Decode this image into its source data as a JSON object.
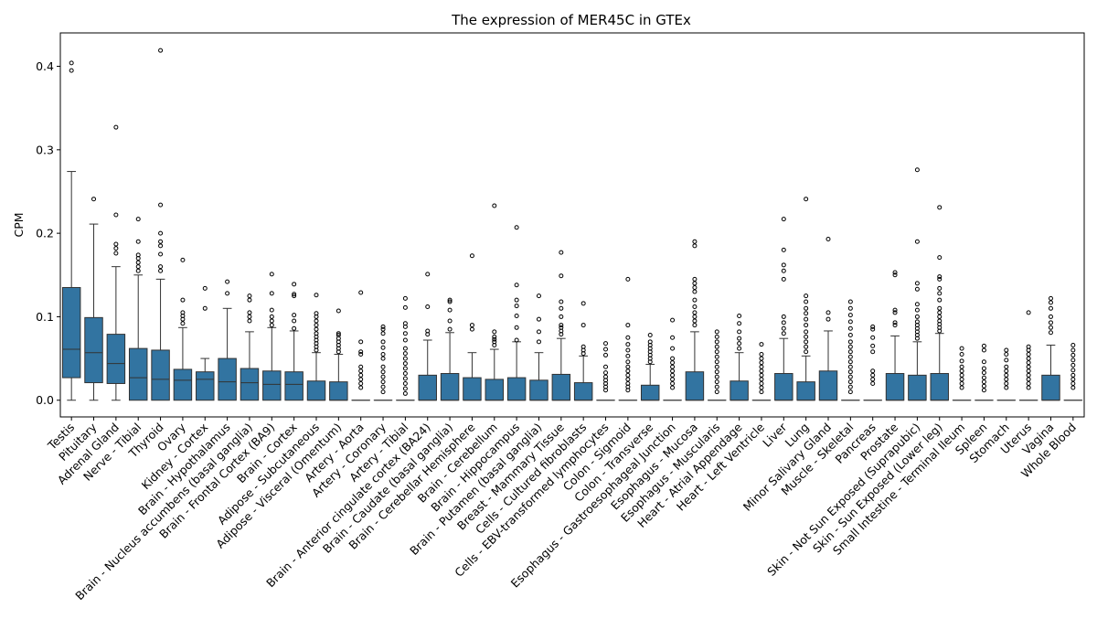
{
  "chart_data": {
    "type": "box",
    "title": "The expression of MER45C in GTEx",
    "xlabel": "",
    "ylabel": "CPM",
    "ylim": [
      -0.02,
      0.44
    ],
    "yticks": [
      "0.0",
      "0.1",
      "0.2",
      "0.3",
      "0.4"
    ],
    "grid": false,
    "colors": {
      "box_fill": "#3274a1",
      "line": "#333333"
    },
    "categories": [
      "Testis",
      "Pituitary",
      "Adrenal Gland",
      "Nerve - Tibial",
      "Thyroid",
      "Ovary",
      "Kidney - Cortex",
      "Brain - Hypothalamus",
      "Brain - Nucleus accumbens (basal ganglia)",
      "Brain - Frontal Cortex (BA9)",
      "Brain - Cortex",
      "Adipose - Subcutaneous",
      "Adipose - Visceral (Omentum)",
      "Artery - Aorta",
      "Artery - Coronary",
      "Artery - Tibial",
      "Brain - Anterior cingulate cortex (BA24)",
      "Brain - Caudate (basal ganglia)",
      "Brain - Cerebellar Hemisphere",
      "Brain - Cerebellum",
      "Brain - Hippocampus",
      "Brain - Putamen (basal ganglia)",
      "Breast - Mammary Tissue",
      "Cells - Cultured fibroblasts",
      "Cells - EBV-transformed lymphocytes",
      "Colon - Sigmoid",
      "Colon - Transverse",
      "Esophagus - Gastroesophageal Junction",
      "Esophagus - Mucosa",
      "Esophagus - Muscularis",
      "Heart - Atrial Appendage",
      "Heart - Left Ventricle",
      "Liver",
      "Lung",
      "Minor Salivary Gland",
      "Muscle - Skeletal",
      "Pancreas",
      "Prostate",
      "Skin - Not Sun Exposed (Suprapubic)",
      "Skin - Sun Exposed (Lower leg)",
      "Small Intestine - Terminal Ileum",
      "Spleen",
      "Stomach",
      "Uterus",
      "Vagina",
      "Whole Blood"
    ],
    "boxes": [
      {
        "whislo": 0,
        "q1": 0.027,
        "med": 0.061,
        "q3": 0.135,
        "whishi": 0.274,
        "fliers": [
          0.395,
          0.404
        ]
      },
      {
        "whislo": 0,
        "q1": 0.021,
        "med": 0.057,
        "q3": 0.099,
        "whishi": 0.211,
        "fliers": [
          0.241
        ]
      },
      {
        "whislo": 0,
        "q1": 0.02,
        "med": 0.044,
        "q3": 0.079,
        "whishi": 0.16,
        "fliers": [
          0.176,
          0.182,
          0.187,
          0.222,
          0.327
        ]
      },
      {
        "whislo": 0,
        "q1": 0,
        "med": 0.027,
        "q3": 0.062,
        "whishi": 0.15,
        "fliers": [
          0.155,
          0.16,
          0.165,
          0.17,
          0.174,
          0.19,
          0.217
        ]
      },
      {
        "whislo": 0,
        "q1": 0,
        "med": 0.025,
        "q3": 0.06,
        "whishi": 0.145,
        "fliers": [
          0.155,
          0.16,
          0.175,
          0.185,
          0.19,
          0.2,
          0.234,
          0.419
        ]
      },
      {
        "whislo": 0,
        "q1": 0,
        "med": 0.024,
        "q3": 0.037,
        "whishi": 0.087,
        "fliers": [
          0.092,
          0.097,
          0.101,
          0.105,
          0.12,
          0.168
        ]
      },
      {
        "whislo": 0,
        "q1": 0,
        "med": 0.025,
        "q3": 0.034,
        "whishi": 0.05,
        "fliers": [
          0.11,
          0.134
        ]
      },
      {
        "whislo": 0,
        "q1": 0,
        "med": 0.022,
        "q3": 0.05,
        "whishi": 0.11,
        "fliers": [
          0.128,
          0.142
        ]
      },
      {
        "whislo": 0,
        "q1": 0,
        "med": 0.021,
        "q3": 0.038,
        "whishi": 0.082,
        "fliers": [
          0.095,
          0.1,
          0.105,
          0.12,
          0.125
        ]
      },
      {
        "whislo": 0,
        "q1": 0,
        "med": 0.019,
        "q3": 0.035,
        "whishi": 0.087,
        "fliers": [
          0.09,
          0.095,
          0.1,
          0.108,
          0.128,
          0.151
        ]
      },
      {
        "whislo": 0,
        "q1": 0,
        "med": 0.019,
        "q3": 0.034,
        "whishi": 0.083,
        "fliers": [
          0.086,
          0.095,
          0.102,
          0.125,
          0.127,
          0.139
        ]
      },
      {
        "whislo": 0,
        "q1": 0,
        "med": 0.0,
        "q3": 0.023,
        "whishi": 0.057,
        "fliers": [
          0.06,
          0.064,
          0.068,
          0.072,
          0.076,
          0.08,
          0.085,
          0.09,
          0.095,
          0.1,
          0.104,
          0.126
        ]
      },
      {
        "whislo": 0,
        "q1": 0,
        "med": 0.0,
        "q3": 0.022,
        "whishi": 0.055,
        "fliers": [
          0.058,
          0.062,
          0.066,
          0.07,
          0.074,
          0.078,
          0.08,
          0.107
        ]
      },
      {
        "whislo": 0,
        "q1": 0,
        "med": 0.0,
        "q3": 0.0,
        "whishi": 0.0,
        "fliers": [
          0.015,
          0.02,
          0.025,
          0.03,
          0.035,
          0.04,
          0.055,
          0.058,
          0.07,
          0.129
        ]
      },
      {
        "whislo": 0,
        "q1": 0,
        "med": 0.0,
        "q3": 0.0,
        "whishi": 0.0,
        "fliers": [
          0.01,
          0.016,
          0.022,
          0.028,
          0.034,
          0.04,
          0.05,
          0.055,
          0.063,
          0.07,
          0.08,
          0.085,
          0.088
        ]
      },
      {
        "whislo": 0,
        "q1": 0,
        "med": 0.0,
        "q3": 0.0,
        "whishi": 0.0,
        "fliers": [
          0.008,
          0.014,
          0.02,
          0.026,
          0.032,
          0.038,
          0.044,
          0.05,
          0.056,
          0.062,
          0.072,
          0.08,
          0.088,
          0.092,
          0.111,
          0.122
        ]
      },
      {
        "whislo": 0,
        "q1": 0,
        "med": 0.0,
        "q3": 0.03,
        "whishi": 0.072,
        "fliers": [
          0.079,
          0.083,
          0.112,
          0.151
        ]
      },
      {
        "whislo": 0,
        "q1": 0,
        "med": 0.0,
        "q3": 0.032,
        "whishi": 0.081,
        "fliers": [
          0.085,
          0.095,
          0.108,
          0.118,
          0.12
        ]
      },
      {
        "whislo": 0,
        "q1": 0,
        "med": 0.0,
        "q3": 0.027,
        "whishi": 0.057,
        "fliers": [
          0.085,
          0.09,
          0.173
        ]
      },
      {
        "whislo": 0,
        "q1": 0,
        "med": 0.0,
        "q3": 0.025,
        "whishi": 0.061,
        "fliers": [
          0.066,
          0.07,
          0.073,
          0.076,
          0.082,
          0.233
        ]
      },
      {
        "whislo": 0,
        "q1": 0,
        "med": 0.0,
        "q3": 0.027,
        "whishi": 0.07,
        "fliers": [
          0.072,
          0.087,
          0.101,
          0.113,
          0.12,
          0.138,
          0.207
        ]
      },
      {
        "whislo": 0,
        "q1": 0,
        "med": 0.0,
        "q3": 0.024,
        "whishi": 0.057,
        "fliers": [
          0.07,
          0.082,
          0.097,
          0.125
        ]
      },
      {
        "whislo": 0,
        "q1": 0,
        "med": 0.0,
        "q3": 0.031,
        "whishi": 0.074,
        "fliers": [
          0.079,
          0.083,
          0.087,
          0.09,
          0.1,
          0.11,
          0.118,
          0.149,
          0.177
        ]
      },
      {
        "whislo": 0,
        "q1": 0,
        "med": 0.0,
        "q3": 0.021,
        "whishi": 0.053,
        "fliers": [
          0.056,
          0.06,
          0.064,
          0.09,
          0.116
        ]
      },
      {
        "whislo": 0,
        "q1": 0,
        "med": 0.0,
        "q3": 0.0,
        "whishi": 0.0,
        "fliers": [
          0.012,
          0.016,
          0.02,
          0.024,
          0.028,
          0.033,
          0.04,
          0.054,
          0.061,
          0.068
        ]
      },
      {
        "whislo": 0,
        "q1": 0,
        "med": 0.0,
        "q3": 0.0,
        "whishi": 0.0,
        "fliers": [
          0.012,
          0.016,
          0.02,
          0.025,
          0.03,
          0.035,
          0.04,
          0.046,
          0.053,
          0.06,
          0.067,
          0.075,
          0.09,
          0.145
        ]
      },
      {
        "whislo": 0,
        "q1": 0,
        "med": 0.0,
        "q3": 0.018,
        "whishi": 0.043,
        "fliers": [
          0.046,
          0.05,
          0.054,
          0.058,
          0.062,
          0.066,
          0.07,
          0.078
        ]
      },
      {
        "whislo": 0,
        "q1": 0,
        "med": 0.0,
        "q3": 0.0,
        "whishi": 0.0,
        "fliers": [
          0.015,
          0.02,
          0.025,
          0.03,
          0.035,
          0.04,
          0.045,
          0.05,
          0.062,
          0.075,
          0.096
        ]
      },
      {
        "whislo": 0,
        "q1": 0,
        "med": 0.0,
        "q3": 0.034,
        "whishi": 0.082,
        "fliers": [
          0.09,
          0.095,
          0.1,
          0.105,
          0.112,
          0.12,
          0.13,
          0.135,
          0.14,
          0.145,
          0.185,
          0.19
        ]
      },
      {
        "whislo": 0,
        "q1": 0,
        "med": 0.0,
        "q3": 0.0,
        "whishi": 0.0,
        "fliers": [
          0.01,
          0.016,
          0.022,
          0.028,
          0.034,
          0.04,
          0.046,
          0.052,
          0.058,
          0.064,
          0.07,
          0.076,
          0.082
        ]
      },
      {
        "whislo": 0,
        "q1": 0,
        "med": 0.0,
        "q3": 0.023,
        "whishi": 0.057,
        "fliers": [
          0.062,
          0.068,
          0.074,
          0.082,
          0.092,
          0.101
        ]
      },
      {
        "whislo": 0,
        "q1": 0,
        "med": 0.0,
        "q3": 0.0,
        "whishi": 0.0,
        "fliers": [
          0.01,
          0.015,
          0.02,
          0.025,
          0.03,
          0.035,
          0.04,
          0.045,
          0.05,
          0.055,
          0.067
        ]
      },
      {
        "whislo": 0,
        "q1": 0,
        "med": 0.0,
        "q3": 0.032,
        "whishi": 0.074,
        "fliers": [
          0.08,
          0.086,
          0.093,
          0.1,
          0.145,
          0.155,
          0.162,
          0.18,
          0.217
        ]
      },
      {
        "whislo": 0,
        "q1": 0,
        "med": 0.0,
        "q3": 0.022,
        "whishi": 0.053,
        "fliers": [
          0.058,
          0.064,
          0.07,
          0.076,
          0.082,
          0.09,
          0.097,
          0.104,
          0.11,
          0.118,
          0.125,
          0.241
        ]
      },
      {
        "whislo": 0,
        "q1": 0,
        "med": 0.0,
        "q3": 0.035,
        "whishi": 0.083,
        "fliers": [
          0.097,
          0.105,
          0.193
        ]
      },
      {
        "whislo": 0,
        "q1": 0,
        "med": 0.0,
        "q3": 0.0,
        "whishi": 0.0,
        "fliers": [
          0.01,
          0.016,
          0.022,
          0.028,
          0.034,
          0.04,
          0.046,
          0.052,
          0.058,
          0.064,
          0.07,
          0.078,
          0.086,
          0.094,
          0.102,
          0.11,
          0.118
        ]
      },
      {
        "whislo": 0,
        "q1": 0,
        "med": 0.0,
        "q3": 0.0,
        "whishi": 0.0,
        "fliers": [
          0.02,
          0.025,
          0.03,
          0.035,
          0.058,
          0.065,
          0.075,
          0.085,
          0.088
        ]
      },
      {
        "whislo": 0,
        "q1": 0,
        "med": 0.0,
        "q3": 0.032,
        "whishi": 0.077,
        "fliers": [
          0.09,
          0.093,
          0.105,
          0.108,
          0.15,
          0.153
        ]
      },
      {
        "whislo": 0,
        "q1": 0,
        "med": 0.0,
        "q3": 0.03,
        "whishi": 0.07,
        "fliers": [
          0.074,
          0.078,
          0.082,
          0.086,
          0.09,
          0.094,
          0.1,
          0.108,
          0.115,
          0.133,
          0.14,
          0.19,
          0.276
        ]
      },
      {
        "whislo": 0,
        "q1": 0,
        "med": 0.0,
        "q3": 0.032,
        "whishi": 0.08,
        "fliers": [
          0.083,
          0.087,
          0.091,
          0.095,
          0.1,
          0.105,
          0.11,
          0.12,
          0.128,
          0.134,
          0.145,
          0.148,
          0.171,
          0.231
        ]
      },
      {
        "whislo": 0,
        "q1": 0,
        "med": 0.0,
        "q3": 0.0,
        "whishi": 0.0,
        "fliers": [
          0.015,
          0.02,
          0.025,
          0.03,
          0.035,
          0.04,
          0.047,
          0.055,
          0.062
        ]
      },
      {
        "whislo": 0,
        "q1": 0,
        "med": 0.0,
        "q3": 0.0,
        "whishi": 0.0,
        "fliers": [
          0.012,
          0.017,
          0.022,
          0.027,
          0.033,
          0.038,
          0.046,
          0.06,
          0.065
        ]
      },
      {
        "whislo": 0,
        "q1": 0,
        "med": 0.0,
        "q3": 0.0,
        "whishi": 0.0,
        "fliers": [
          0.015,
          0.02,
          0.025,
          0.03,
          0.035,
          0.04,
          0.048,
          0.055,
          0.06
        ]
      },
      {
        "whislo": 0,
        "q1": 0,
        "med": 0.0,
        "q3": 0.0,
        "whishi": 0.0,
        "fliers": [
          0.015,
          0.02,
          0.025,
          0.03,
          0.035,
          0.04,
          0.045,
          0.05,
          0.055,
          0.06,
          0.064,
          0.105
        ]
      },
      {
        "whislo": 0,
        "q1": 0,
        "med": 0.0,
        "q3": 0.03,
        "whishi": 0.066,
        "fliers": [
          0.081,
          0.087,
          0.093,
          0.1,
          0.11,
          0.117,
          0.122
        ]
      },
      {
        "whislo": 0,
        "q1": 0,
        "med": 0.0,
        "q3": 0.0,
        "whishi": 0.0,
        "fliers": [
          0.015,
          0.02,
          0.025,
          0.03,
          0.036,
          0.042,
          0.048,
          0.054,
          0.06,
          0.066
        ]
      }
    ]
  }
}
